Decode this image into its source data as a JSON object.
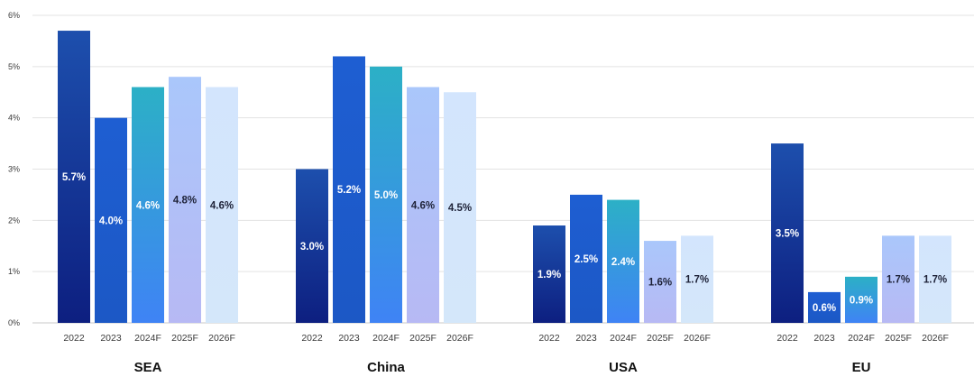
{
  "chart_data": {
    "type": "bar",
    "title": "",
    "xlabel": "",
    "ylabel": "",
    "ylim": [
      0,
      6
    ],
    "y_ticks": [
      "0%",
      "1%",
      "2%",
      "3%",
      "4%",
      "5%",
      "6%"
    ],
    "grid": true,
    "groups": [
      {
        "name": "SEA",
        "categories": [
          "2022",
          "2023",
          "2024F",
          "2025F",
          "2026F"
        ],
        "values": [
          5.7,
          4.0,
          4.6,
          4.8,
          4.6
        ],
        "labels": [
          "5.7%",
          "4.0%",
          "4.6%",
          "4.8%",
          "4.6%"
        ]
      },
      {
        "name": "China",
        "categories": [
          "2022",
          "2023",
          "2024F",
          "2025F",
          "2026F"
        ],
        "values": [
          3.0,
          5.2,
          5.0,
          4.6,
          4.5
        ],
        "labels": [
          "3.0%",
          "5.2%",
          "5.0%",
          "4.6%",
          "4.5%"
        ]
      },
      {
        "name": "USA",
        "categories": [
          "2022",
          "2023",
          "2024F",
          "2025F",
          "2026F"
        ],
        "values": [
          1.9,
          2.5,
          2.4,
          1.6,
          1.7
        ],
        "labels": [
          "1.9%",
          "2.5%",
          "2.4%",
          "1.6%",
          "1.7%"
        ]
      },
      {
        "name": "EU",
        "categories": [
          "2022",
          "2023",
          "2024F",
          "2025F",
          "2026F"
        ],
        "values": [
          3.5,
          0.6,
          0.9,
          1.7,
          1.7
        ],
        "labels": [
          "3.5%",
          "0.6%",
          "0.9%",
          "1.7%",
          "1.7%"
        ]
      }
    ]
  },
  "colors": {
    "year_2022_top": "#1d4fad",
    "year_2022_bottom": "#0d1f80",
    "year_2023_top": "#1e5ed2",
    "year_2023_bottom": "#1c58c5",
    "year_2024_top": "#2cb0c6",
    "year_2024_bottom": "#3f83f5",
    "year_2025_top": "#aac7fb",
    "year_2025_bottom": "#b7b9f4",
    "year_2026_top": "#d3e5fd",
    "year_2026_bottom": "#d4e7fa",
    "label_light": "#ffffff",
    "label_dark": "#1e2238",
    "axis_text": "#3a3a3a",
    "grid": "#e3e3e3",
    "baseline": "#c9c9c9"
  }
}
